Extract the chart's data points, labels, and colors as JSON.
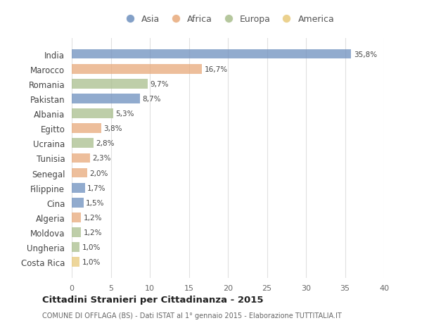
{
  "countries": [
    "India",
    "Marocco",
    "Romania",
    "Pakistan",
    "Albania",
    "Egitto",
    "Ucraina",
    "Tunisia",
    "Senegal",
    "Filippine",
    "Cina",
    "Algeria",
    "Moldova",
    "Ungheria",
    "Costa Rica"
  ],
  "values": [
    35.8,
    16.7,
    9.7,
    8.7,
    5.3,
    3.8,
    2.8,
    2.3,
    2.0,
    1.7,
    1.5,
    1.2,
    1.2,
    1.0,
    1.0
  ],
  "labels": [
    "35,8%",
    "16,7%",
    "9,7%",
    "8,7%",
    "5,3%",
    "3,8%",
    "2,8%",
    "2,3%",
    "2,0%",
    "1,7%",
    "1,5%",
    "1,2%",
    "1,2%",
    "1,0%",
    "1,0%"
  ],
  "continents": [
    "Asia",
    "Africa",
    "Europa",
    "Asia",
    "Europa",
    "Africa",
    "Europa",
    "Africa",
    "Africa",
    "Asia",
    "Asia",
    "Africa",
    "Europa",
    "Europa",
    "America"
  ],
  "colors": {
    "Asia": "#6d8fbe",
    "Africa": "#e8a97a",
    "Europa": "#a8be8c",
    "America": "#e8c97a"
  },
  "legend_labels": [
    "Asia",
    "Africa",
    "Europa",
    "America"
  ],
  "legend_colors": [
    "#6d8fbe",
    "#e8a97a",
    "#a8be8c",
    "#e8c97a"
  ],
  "title": "Cittadini Stranieri per Cittadinanza - 2015",
  "subtitle": "COMUNE DI OFFLAGA (BS) - Dati ISTAT al 1° gennaio 2015 - Elaborazione TUTTITALIA.IT",
  "xlim": [
    0,
    40
  ],
  "xticks": [
    0,
    5,
    10,
    15,
    20,
    25,
    30,
    35,
    40
  ],
  "background_color": "#ffffff",
  "grid_color": "#e0e0e0",
  "bar_alpha": 0.75
}
